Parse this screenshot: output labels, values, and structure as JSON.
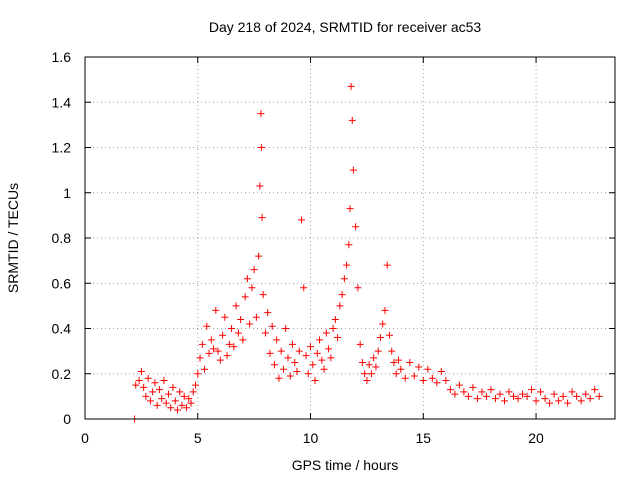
{
  "chart_data": {
    "type": "scatter",
    "title": "Day 218 of 2024, SRMTID for receiver ac53",
    "xlabel": "GPS time / hours",
    "ylabel": "SRMTID / TECUs",
    "xlim": [
      0,
      23.5
    ],
    "ylim": [
      0,
      1.6
    ],
    "xticks": [
      0,
      5,
      10,
      15,
      20
    ],
    "xtick_labels": [
      "0",
      "5",
      "10",
      "15",
      "20"
    ],
    "yticks": [
      0,
      0.2,
      0.4,
      0.6,
      0.8,
      1.0,
      1.2,
      1.4,
      1.6
    ],
    "ytick_labels": [
      "0",
      "0.2",
      "0.4",
      "0.6",
      "0.8",
      "1",
      "1.2",
      "1.4",
      "1.6"
    ],
    "grid": true,
    "legend": "none",
    "series": [
      {
        "name": "SRMTID",
        "color": "#ff0000",
        "marker": "plus",
        "x": [
          2.2,
          2.25,
          2.4,
          2.5,
          2.6,
          2.7,
          2.8,
          2.9,
          3.0,
          3.1,
          3.2,
          3.3,
          3.4,
          3.5,
          3.6,
          3.7,
          3.8,
          3.9,
          4.0,
          4.1,
          4.2,
          4.3,
          4.4,
          4.5,
          4.6,
          4.7,
          4.8,
          4.9,
          5.0,
          5.1,
          5.2,
          5.3,
          5.4,
          5.5,
          5.6,
          5.7,
          5.8,
          5.9,
          6.0,
          6.1,
          6.2,
          6.3,
          6.4,
          6.5,
          6.6,
          6.7,
          6.8,
          6.9,
          7.0,
          7.1,
          7.2,
          7.3,
          7.4,
          7.5,
          7.6,
          7.7,
          7.75,
          7.8,
          7.82,
          7.85,
          7.9,
          8.0,
          8.1,
          8.2,
          8.3,
          8.4,
          8.5,
          8.6,
          8.7,
          8.8,
          8.9,
          9.0,
          9.1,
          9.2,
          9.3,
          9.4,
          9.5,
          9.6,
          9.7,
          9.8,
          9.9,
          10.0,
          10.1,
          10.2,
          10.3,
          10.4,
          10.5,
          10.6,
          10.7,
          10.8,
          10.9,
          11.0,
          11.1,
          11.2,
          11.3,
          11.4,
          11.5,
          11.6,
          11.7,
          11.75,
          11.8,
          11.85,
          11.9,
          12.0,
          12.1,
          12.2,
          12.3,
          12.4,
          12.5,
          12.6,
          12.7,
          12.8,
          12.9,
          13.0,
          13.1,
          13.2,
          13.3,
          13.4,
          13.5,
          13.6,
          13.7,
          13.8,
          13.9,
          14.0,
          14.2,
          14.4,
          14.6,
          14.8,
          15.0,
          15.2,
          15.4,
          15.6,
          15.8,
          16.0,
          16.2,
          16.4,
          16.6,
          16.8,
          17.0,
          17.2,
          17.4,
          17.6,
          17.8,
          18.0,
          18.2,
          18.4,
          18.6,
          18.8,
          19.0,
          19.2,
          19.4,
          19.6,
          19.8,
          20.0,
          20.2,
          20.4,
          20.6,
          20.8,
          21.0,
          21.2,
          21.4,
          21.6,
          21.8,
          22.0,
          22.2,
          22.4,
          22.6,
          22.8
        ],
        "y": [
          0.0,
          0.15,
          0.17,
          0.21,
          0.14,
          0.1,
          0.18,
          0.08,
          0.12,
          0.16,
          0.06,
          0.13,
          0.09,
          0.17,
          0.07,
          0.11,
          0.05,
          0.14,
          0.08,
          0.04,
          0.12,
          0.06,
          0.1,
          0.05,
          0.09,
          0.07,
          0.12,
          0.15,
          0.2,
          0.27,
          0.33,
          0.22,
          0.41,
          0.29,
          0.35,
          0.31,
          0.48,
          0.3,
          0.26,
          0.37,
          0.45,
          0.28,
          0.33,
          0.4,
          0.32,
          0.5,
          0.38,
          0.44,
          0.35,
          0.54,
          0.62,
          0.42,
          0.58,
          0.66,
          0.45,
          0.72,
          1.03,
          1.35,
          1.2,
          0.89,
          0.55,
          0.38,
          0.47,
          0.29,
          0.41,
          0.24,
          0.35,
          0.18,
          0.3,
          0.22,
          0.4,
          0.27,
          0.19,
          0.33,
          0.25,
          0.21,
          0.3,
          0.88,
          0.58,
          0.28,
          0.2,
          0.32,
          0.24,
          0.17,
          0.29,
          0.35,
          0.26,
          0.22,
          0.38,
          0.31,
          0.27,
          0.4,
          0.44,
          0.36,
          0.5,
          0.55,
          0.62,
          0.68,
          0.77,
          0.93,
          1.47,
          1.32,
          1.1,
          0.85,
          0.58,
          0.33,
          0.25,
          0.2,
          0.17,
          0.24,
          0.2,
          0.27,
          0.23,
          0.3,
          0.36,
          0.42,
          0.48,
          0.68,
          0.37,
          0.3,
          0.25,
          0.2,
          0.26,
          0.22,
          0.18,
          0.25,
          0.19,
          0.23,
          0.17,
          0.22,
          0.18,
          0.16,
          0.21,
          0.17,
          0.13,
          0.11,
          0.15,
          0.12,
          0.1,
          0.14,
          0.09,
          0.12,
          0.1,
          0.13,
          0.09,
          0.11,
          0.08,
          0.12,
          0.1,
          0.09,
          0.11,
          0.1,
          0.13,
          0.08,
          0.12,
          0.09,
          0.07,
          0.11,
          0.08,
          0.1,
          0.07,
          0.12,
          0.1,
          0.08,
          0.11,
          0.09,
          0.13,
          0.1
        ]
      }
    ]
  }
}
